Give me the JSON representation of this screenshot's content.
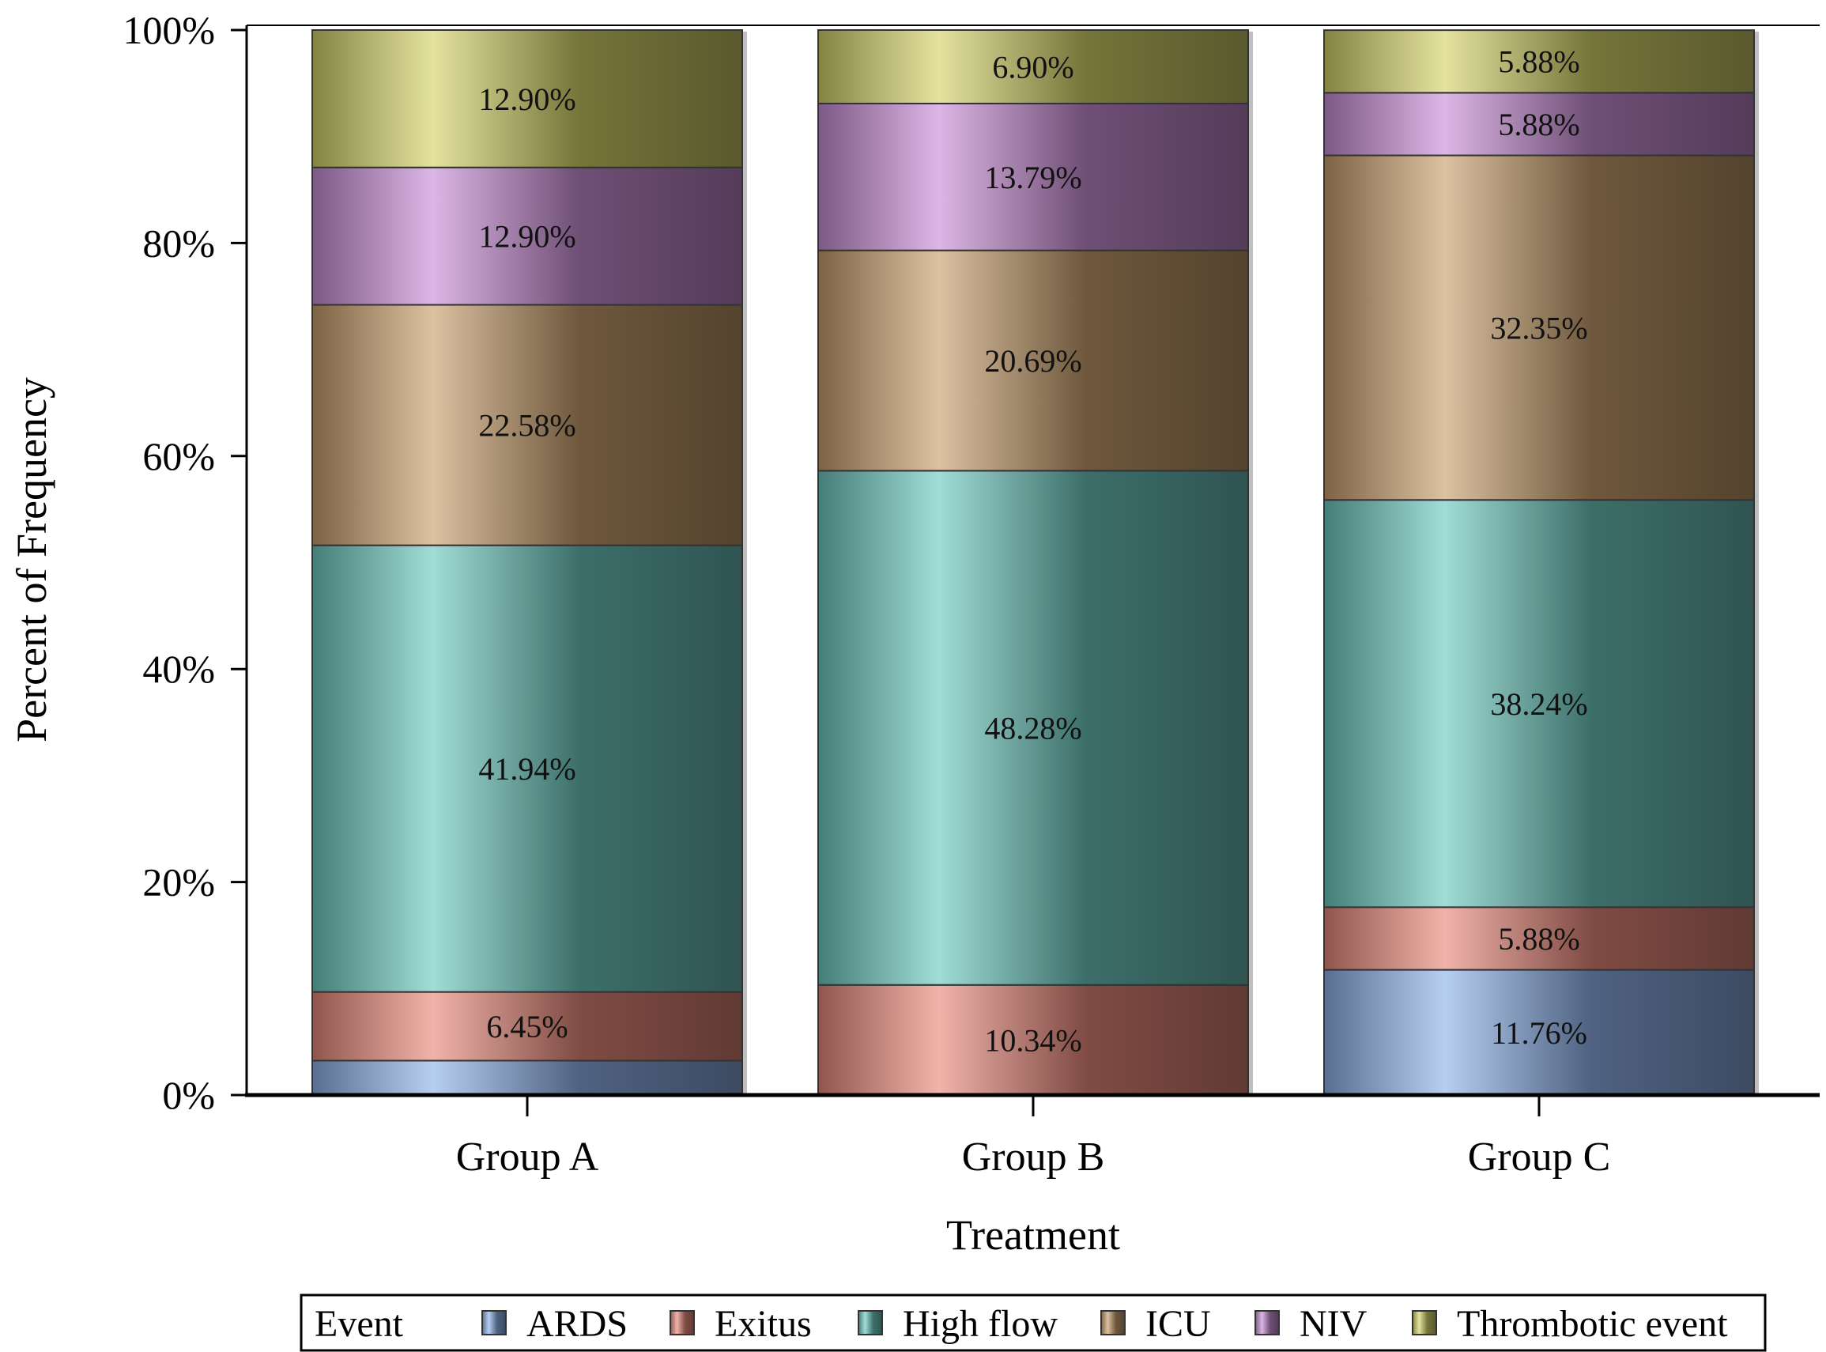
{
  "chart_data": {
    "type": "bar",
    "stacked": true,
    "normalized": true,
    "title": "",
    "xlabel": "Treatment",
    "ylabel": "Percent of Frequency",
    "ylim": [
      0,
      100
    ],
    "yticks": [
      "0%",
      "20%",
      "40%",
      "60%",
      "80%",
      "100%"
    ],
    "grid": false,
    "categories": [
      "Group A",
      "Group B",
      "Group C"
    ],
    "legend": {
      "title": "Event",
      "position": "bottom"
    },
    "series": [
      {
        "name": "ARDS",
        "color": "#8fb3ea",
        "values": [
          3.23,
          0,
          11.76
        ],
        "labels": [
          "",
          "",
          "11.76%"
        ]
      },
      {
        "name": "Exitus",
        "color": "#e88a7c",
        "values": [
          6.45,
          10.34,
          5.88
        ],
        "labels": [
          "6.45%",
          "10.34%",
          "5.88%"
        ]
      },
      {
        "name": "High flow",
        "color": "#6fc9c0",
        "values": [
          41.94,
          48.28,
          38.24
        ],
        "labels": [
          "41.94%",
          "48.28%",
          "38.24%"
        ]
      },
      {
        "name": "ICU",
        "color": "#c9a06e",
        "values": [
          22.58,
          20.69,
          32.35
        ],
        "labels": [
          "22.58%",
          "20.69%",
          "32.35%"
        ]
      },
      {
        "name": "NIV",
        "color": "#c98fd6",
        "values": [
          12.9,
          13.79,
          5.88
        ],
        "labels": [
          "12.90%",
          "13.79%",
          "5.88%"
        ]
      },
      {
        "name": "Thrombotic event",
        "color": "#d6d46a",
        "values": [
          12.9,
          6.9,
          5.88
        ],
        "labels": [
          "12.90%",
          "6.90%",
          "5.88%"
        ]
      }
    ]
  }
}
